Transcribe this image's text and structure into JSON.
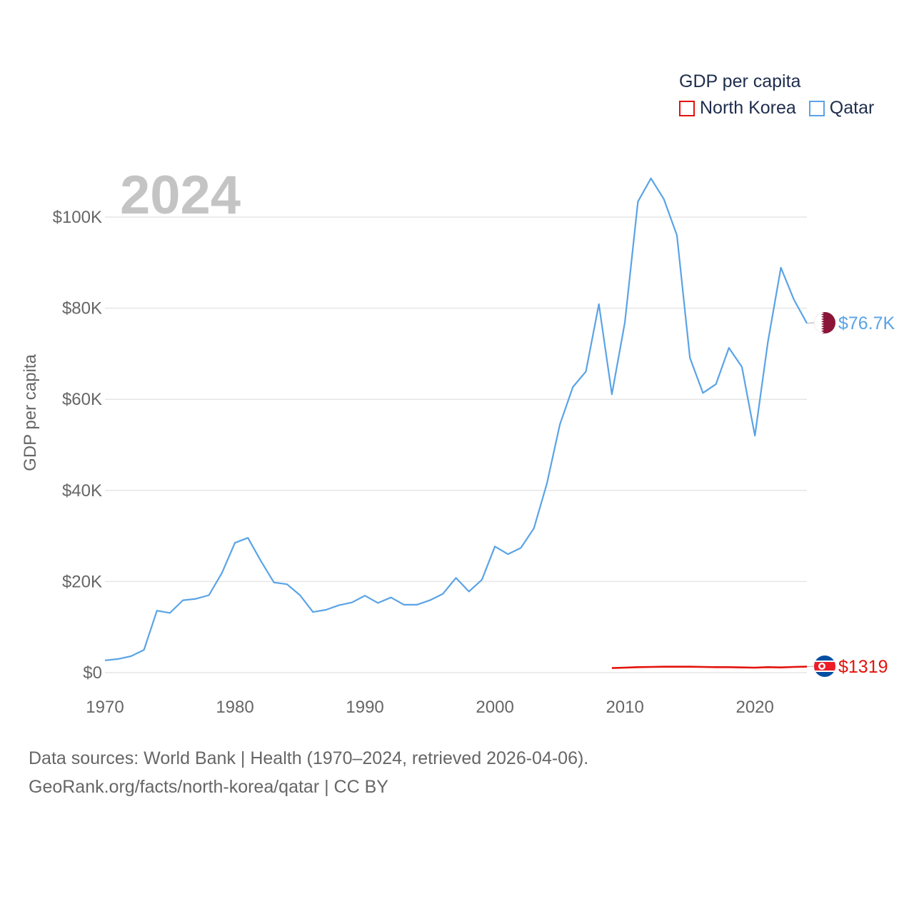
{
  "legend": {
    "title": "GDP per capita",
    "items": [
      {
        "label": "North Korea",
        "color": "#e3120b"
      },
      {
        "label": "Qatar",
        "color": "#5aa3e6"
      }
    ]
  },
  "footer": {
    "line1": "Data sources: World Bank | Health (1970–2024, retrieved 2026-04-06).",
    "line2": "GeoRank.org/facts/north-korea/qatar | CC BY"
  },
  "chart_data": {
    "type": "line",
    "title": "GDP per capita",
    "year_label": "2024",
    "xlabel": "",
    "ylabel": "GDP per capita",
    "xlim": [
      1970,
      2024
    ],
    "ylim": [
      0,
      110000
    ],
    "x_ticks": [
      {
        "value": 1970,
        "label": "1970"
      },
      {
        "value": 1980,
        "label": "1980"
      },
      {
        "value": 1990,
        "label": "1990"
      },
      {
        "value": 2000,
        "label": "2000"
      },
      {
        "value": 2010,
        "label": "2010"
      },
      {
        "value": 2020,
        "label": "2020"
      }
    ],
    "y_ticks": [
      {
        "value": 0,
        "label": "$0"
      },
      {
        "value": 20000,
        "label": "$20K"
      },
      {
        "value": 40000,
        "label": "$40K"
      },
      {
        "value": 60000,
        "label": "$60K"
      },
      {
        "value": 80000,
        "label": "$80K"
      },
      {
        "value": 100000,
        "label": "$100K"
      }
    ],
    "grid": true,
    "legend_position": "top-right",
    "series": [
      {
        "name": "Qatar",
        "color": "#5aa3e6",
        "end_label": "$76.7K",
        "flag": "qatar-flag-icon",
        "x": [
          1970,
          1971,
          1972,
          1973,
          1974,
          1975,
          1976,
          1977,
          1978,
          1979,
          1980,
          1981,
          1982,
          1983,
          1984,
          1985,
          1986,
          1987,
          1988,
          1989,
          1990,
          1991,
          1992,
          1993,
          1994,
          1995,
          1996,
          1997,
          1998,
          1999,
          2000,
          2001,
          2002,
          2003,
          2004,
          2005,
          2006,
          2007,
          2008,
          2009,
          2010,
          2011,
          2012,
          2013,
          2014,
          2015,
          2016,
          2017,
          2018,
          2019,
          2020,
          2021,
          2022,
          2023,
          2024
        ],
        "values": [
          2700,
          3000,
          3600,
          5000,
          13600,
          13100,
          15900,
          16200,
          17000,
          21900,
          28500,
          29600,
          24500,
          19800,
          19400,
          17000,
          13300,
          13800,
          14800,
          15400,
          16900,
          15300,
          16500,
          14900,
          14900,
          15900,
          17300,
          20800,
          17800,
          20400,
          27700,
          26000,
          27400,
          31700,
          41500,
          54500,
          62700,
          66100,
          80900,
          61100,
          76900,
          103400,
          108500,
          103900,
          96000,
          69100,
          61400,
          63300,
          71300,
          67100,
          52000,
          72600,
          88900,
          81900,
          76700
        ]
      },
      {
        "name": "North Korea",
        "color": "#e3120b",
        "end_label": "$1319",
        "flag": "north-korea-flag-icon",
        "x": [
          2009,
          2010,
          2011,
          2012,
          2013,
          2014,
          2015,
          2016,
          2017,
          2018,
          2019,
          2020,
          2021,
          2022,
          2023,
          2024
        ],
        "values": [
          1000,
          1100,
          1200,
          1250,
          1300,
          1300,
          1300,
          1250,
          1200,
          1200,
          1150,
          1100,
          1200,
          1150,
          1250,
          1319
        ]
      }
    ]
  }
}
